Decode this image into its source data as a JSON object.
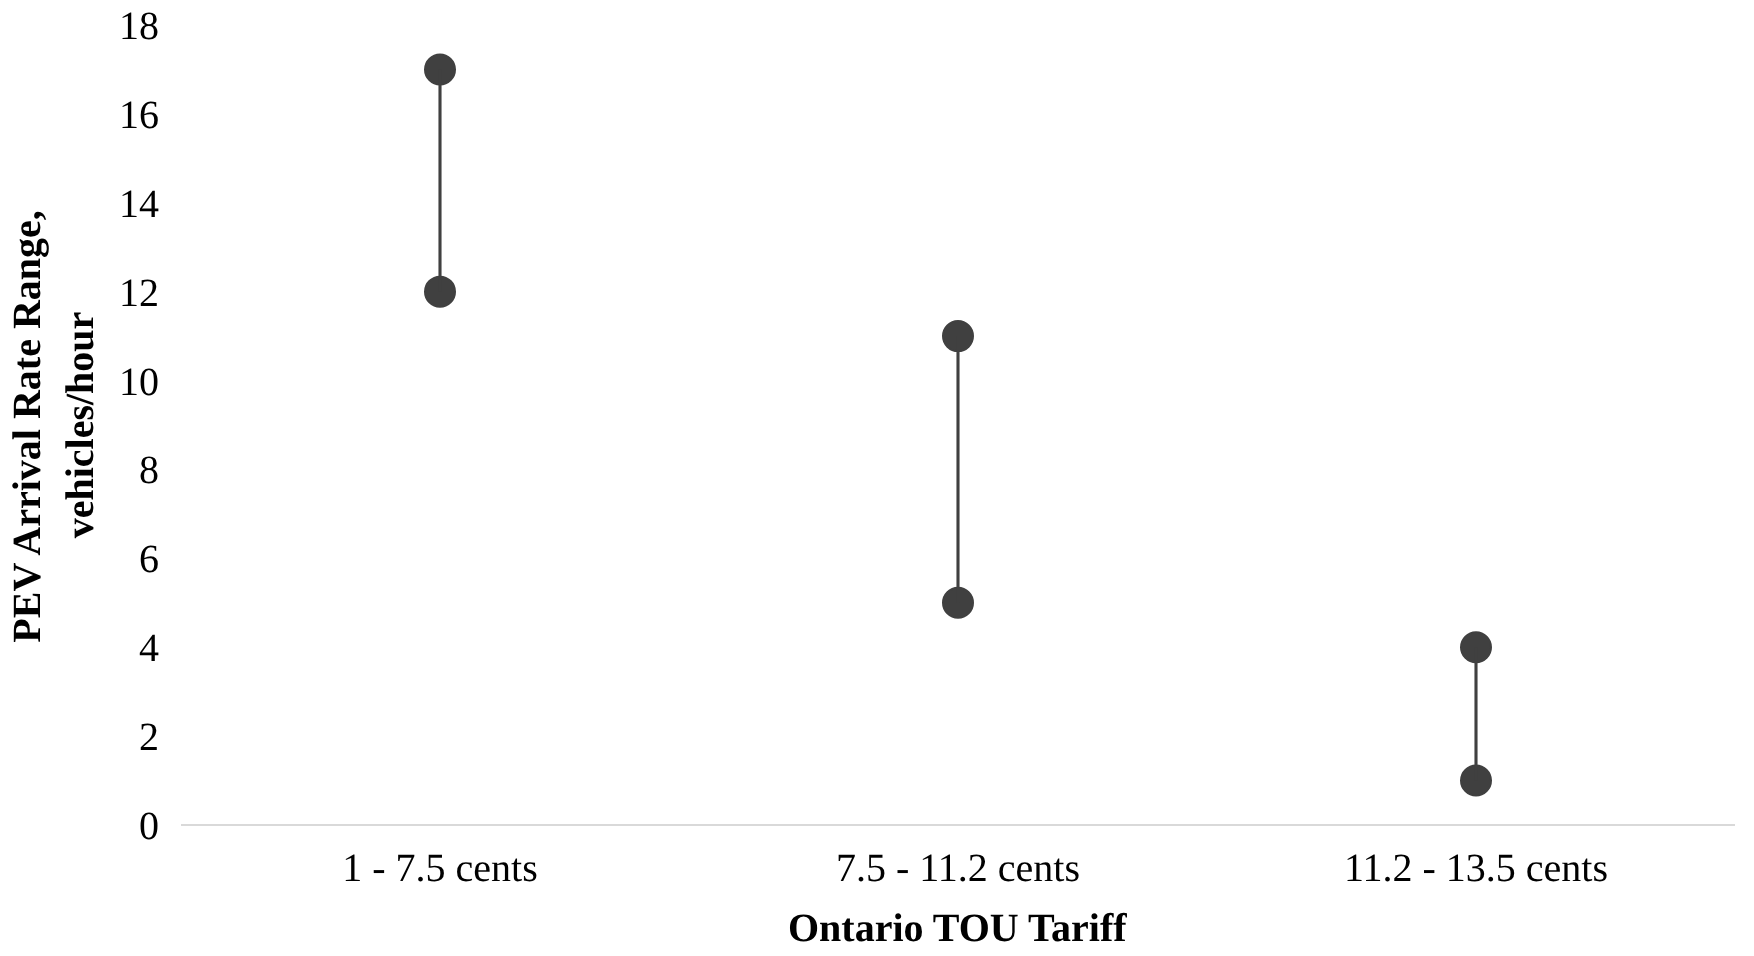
{
  "chart_data": {
    "type": "bar",
    "xlabel": "Ontario TOU Tariff",
    "ylabel": "PEV Arrival Rate Range,\nvehicles/hour",
    "categories": [
      "1 - 7.5 cents",
      "7.5 - 11.2 cents",
      "11.2 - 13.5 cents"
    ],
    "series": [
      {
        "color": "#404040",
        "base": [
          12,
          5,
          1
        ],
        "values": [
          5,
          6,
          3
        ]
      },
      {
        "type": "scatter",
        "color": "#404040",
        "x": [
          "1 - 7.5 cents",
          "7.5 - 11.2 cents",
          "11.2 - 13.5 cents"
        ],
        "values": [
          12,
          5,
          1
        ]
      },
      {
        "type": "scatter",
        "color": "#404040",
        "x": [
          "1 - 7.5 cents",
          "7.5 - 11.2 cents",
          "11.2 - 13.5 cents"
        ],
        "values": [
          17,
          11,
          4
        ]
      }
    ],
    "ylim": [
      0,
      18
    ],
    "yticks": [
      0,
      2,
      4,
      6,
      8,
      10,
      12,
      14,
      16,
      18
    ],
    "grid": false,
    "marker": "circle"
  }
}
